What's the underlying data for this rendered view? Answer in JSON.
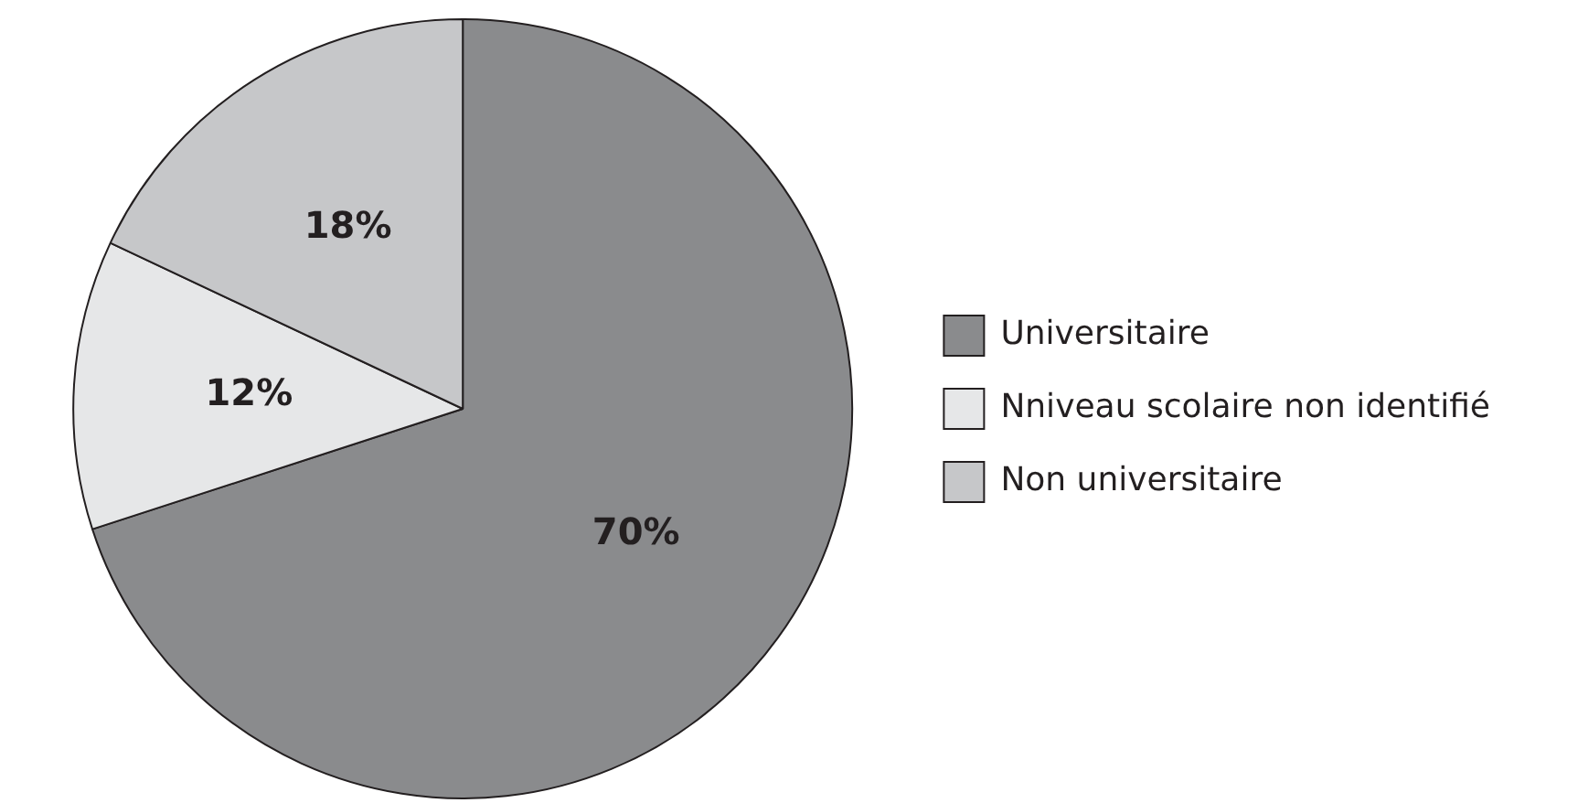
{
  "chart_data": {
    "type": "pie",
    "categories": [
      "Universitaire",
      "Nniveau scolaire non identifié",
      "Non universitaire"
    ],
    "values": [
      70,
      12,
      18
    ],
    "colors": [
      "#8a8b8d",
      "#e6e7e8",
      "#c6c7c9"
    ],
    "value_labels": [
      "70%",
      "12%",
      "18%"
    ],
    "legend": "right"
  }
}
